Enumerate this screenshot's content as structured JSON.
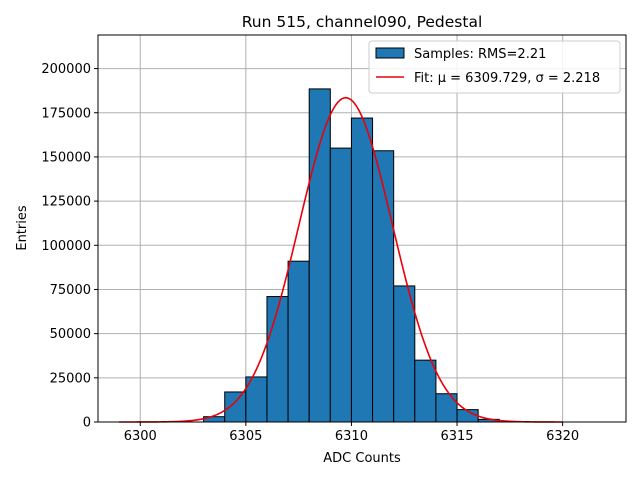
{
  "chart_data": {
    "type": "bar",
    "title": "Run 515, channel090, Pedestal",
    "xlabel": "ADC Counts",
    "ylabel": "Entries",
    "xlim": [
      6298,
      6323
    ],
    "ylim": [
      0,
      219000
    ],
    "xticks": [
      6300,
      6305,
      6310,
      6315,
      6320
    ],
    "xtick_labels": [
      "6300",
      "6305",
      "6310",
      "6315",
      "6320"
    ],
    "yticks": [
      0,
      25000,
      50000,
      75000,
      100000,
      125000,
      150000,
      175000,
      200000
    ],
    "ytick_labels": [
      "0",
      "25000",
      "50000",
      "75000",
      "100000",
      "125000",
      "150000",
      "175000",
      "200000"
    ],
    "grid": true,
    "legend_position": "top-right",
    "bin_width": 1,
    "bins": [
      {
        "left": 6303,
        "value": 3000
      },
      {
        "left": 6304,
        "value": 17000
      },
      {
        "left": 6305,
        "value": 25500
      },
      {
        "left": 6306,
        "value": 71000
      },
      {
        "left": 6307,
        "value": 91000
      },
      {
        "left": 6308,
        "value": 188500
      },
      {
        "left": 6309,
        "value": 155000
      },
      {
        "left": 6310,
        "value": 172000
      },
      {
        "left": 6311,
        "value": 153500
      },
      {
        "left": 6312,
        "value": 77000
      },
      {
        "left": 6313,
        "value": 35000
      },
      {
        "left": 6314,
        "value": 16000
      },
      {
        "left": 6315,
        "value": 7000
      },
      {
        "left": 6316,
        "value": 1500
      }
    ],
    "series": [
      {
        "name": "Samples: RMS=2.21",
        "kind": "histogram",
        "color": "#1f77b4"
      },
      {
        "name": "Fit: μ = 6309.729, σ = 2.218",
        "kind": "gaussian-fit",
        "color": "#e8000b",
        "amplitude": 183500,
        "mu": 6309.729,
        "sigma": 2.218,
        "x_range": [
          6299,
          6320
        ]
      }
    ]
  }
}
